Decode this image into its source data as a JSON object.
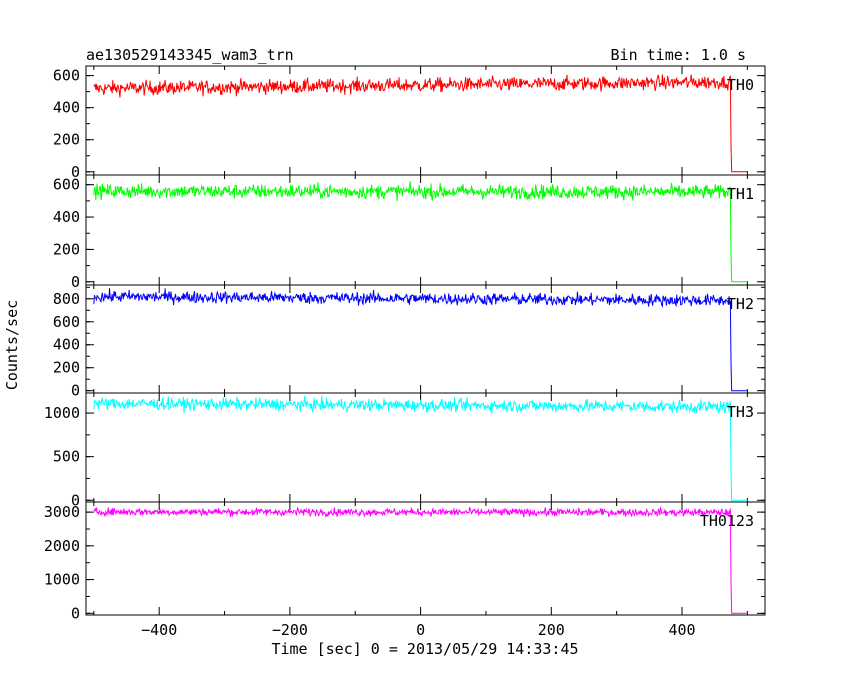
{
  "chart_data": {
    "type": "line",
    "title": "ae130529143345_wam3_trn",
    "subtitle": "Bin time: 1.0 s",
    "xlabel": "Time [sec] 0 = 2013/05/29 14:33:45",
    "ylabel": "Counts/sec",
    "xlim": [
      -512,
      527
    ],
    "x_ticks": [
      -400,
      -200,
      0,
      200,
      400
    ],
    "x_tick_labels": [
      "−400",
      "−200",
      "0",
      "200",
      "400"
    ],
    "grid": false,
    "panels": [
      {
        "name": "TH0",
        "color": "#ff0000",
        "ylim": [
          -20,
          660
        ],
        "y_ticks": [
          0,
          200,
          400,
          600
        ],
        "y_tick_labels": [
          "0",
          "200",
          "400",
          "600"
        ],
        "data_start": -500,
        "drop_time": 474,
        "data_end": 500,
        "level_start": 520,
        "level_end": 560,
        "noise": 22,
        "tail_value": 0
      },
      {
        "name": "TH1",
        "color": "#00ff00",
        "ylim": [
          -20,
          660
        ],
        "y_ticks": [
          0,
          200,
          400,
          600
        ],
        "y_tick_labels": [
          "0",
          "200",
          "400",
          "600"
        ],
        "data_start": -500,
        "drop_time": 474,
        "data_end": 500,
        "level_start": 560,
        "level_end": 555,
        "noise": 22,
        "tail_value": 0
      },
      {
        "name": "TH2",
        "color": "#0000ff",
        "ylim": [
          -20,
          920
        ],
        "y_ticks": [
          0,
          200,
          400,
          600,
          800
        ],
        "y_tick_labels": [
          "0",
          "200",
          "400",
          "600",
          "800"
        ],
        "data_start": -500,
        "drop_time": 474,
        "data_end": 500,
        "level_start": 820,
        "level_end": 785,
        "noise": 26,
        "tail_value": 0
      },
      {
        "name": "TH3",
        "color": "#00ffff",
        "ylim": [
          -20,
          1230
        ],
        "y_ticks": [
          0,
          500,
          1000
        ],
        "y_tick_labels": [
          "0",
          "500",
          "1000"
        ],
        "data_start": -500,
        "drop_time": 474,
        "data_end": 500,
        "level_start": 1110,
        "level_end": 1070,
        "noise": 35,
        "tail_value": 0
      },
      {
        "name": "TH0123",
        "color": "#ff00ff",
        "ylim": [
          -50,
          3300
        ],
        "y_ticks": [
          0,
          1000,
          2000,
          3000
        ],
        "y_tick_labels": [
          "0",
          "1000",
          "2000",
          "3000"
        ],
        "data_start": -500,
        "drop_time": 474,
        "data_end": 500,
        "level_start": 3010,
        "level_end": 2990,
        "noise": 55,
        "tail_value": 0
      }
    ]
  }
}
